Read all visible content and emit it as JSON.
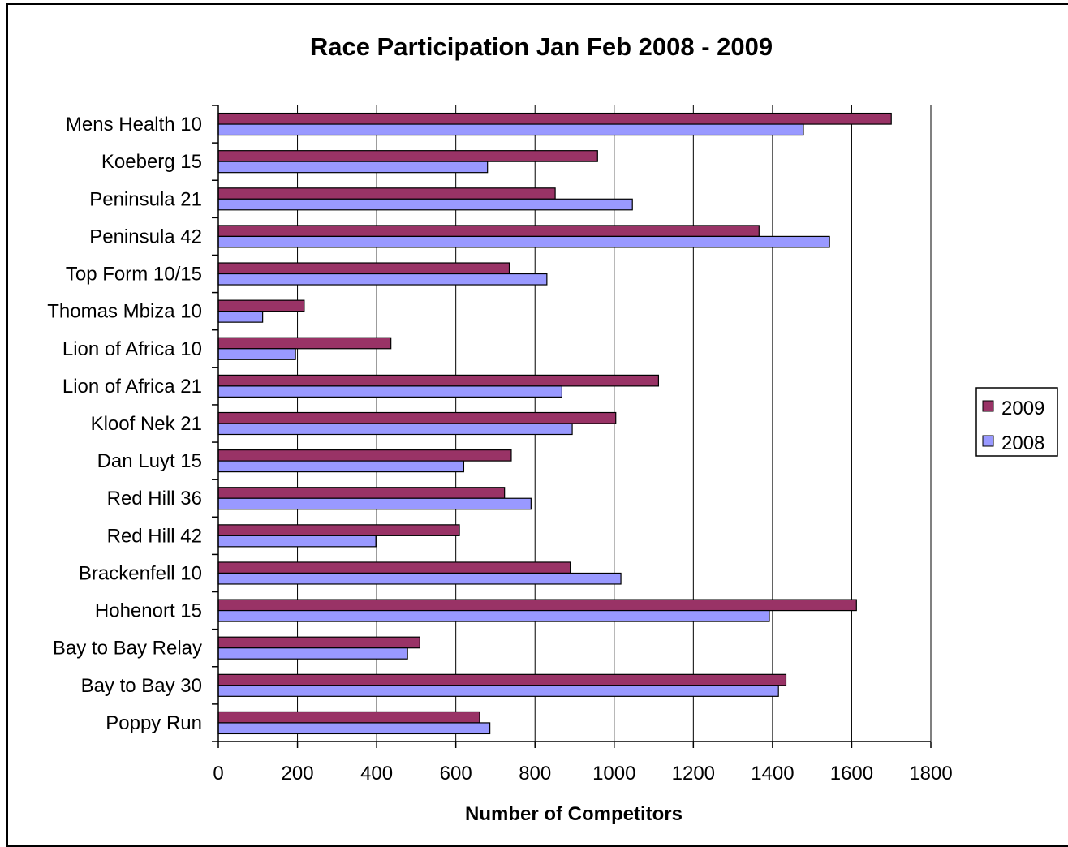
{
  "chart_data": {
    "type": "bar",
    "orientation": "horizontal",
    "title": "Race Participation Jan Feb 2008 - 2009",
    "xlabel": "Number of Competitors",
    "ylabel": "",
    "xlim": [
      0,
      1800
    ],
    "xticks": [
      "0",
      "200",
      "400",
      "600",
      "800",
      "1000",
      "1200",
      "1400",
      "1600",
      "1800"
    ],
    "grid": "vertical",
    "legend_position": "right",
    "categories": [
      "Mens Health 10",
      "Koeberg 15",
      "Peninsula 21",
      "Peninsula 42",
      "Top Form 10/15",
      "Thomas Mbiza 10",
      "Lion of Africa 10",
      "Lion of Africa 21",
      "Kloof Nek 21",
      "Dan Luyt 15",
      "Red Hill 36",
      "Red Hill 42",
      "Brackenfell 10",
      "Hohenort 15",
      "Bay to Bay Relay",
      "Bay to Bay 30",
      "Poppy Run"
    ],
    "series": [
      {
        "name": "2009",
        "color": "#993366",
        "values": [
          1700,
          958,
          851,
          1366,
          735,
          217,
          436,
          1112,
          1004,
          740,
          723,
          609,
          889,
          1612,
          509,
          1434,
          660
        ]
      },
      {
        "name": "2008",
        "color": "#9999ff",
        "values": [
          1478,
          680,
          1046,
          1544,
          830,
          112,
          195,
          868,
          894,
          620,
          790,
          398,
          1017,
          1392,
          478,
          1415,
          686
        ]
      }
    ]
  }
}
